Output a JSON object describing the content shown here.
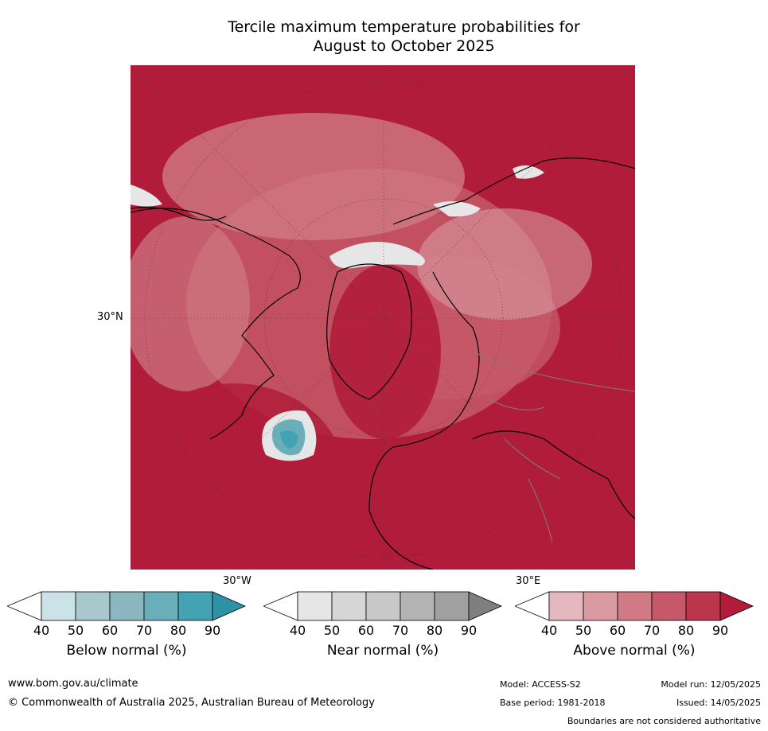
{
  "title_line1": "Tercile maximum temperature probabilities for",
  "title_line2": "August to October 2025",
  "map": {
    "lat_label": "30°N",
    "lon_label_west": "30°W",
    "lon_label_east": "30°E"
  },
  "colorbars": [
    {
      "label": "Below normal (%)",
      "ticks": [
        "40",
        "50",
        "60",
        "70",
        "80",
        "90"
      ],
      "colors": [
        "#ffffff",
        "#cbe2e8",
        "#a8c8ce",
        "#8bb8c0",
        "#6aaeba",
        "#44a3b3",
        "#2d92a6"
      ]
    },
    {
      "label": "Near normal (%)",
      "ticks": [
        "40",
        "50",
        "60",
        "70",
        "80",
        "90"
      ],
      "colors": [
        "#ffffff",
        "#e6e6e6",
        "#d6d6d6",
        "#c8c8c8",
        "#b4b4b4",
        "#a0a0a0",
        "#7f7f7f"
      ]
    },
    {
      "label": "Above normal (%)",
      "ticks": [
        "40",
        "50",
        "60",
        "70",
        "80",
        "90"
      ],
      "colors": [
        "#ffffff",
        "#e4b8be",
        "#d99aa2",
        "#cf7a85",
        "#c65969",
        "#bb364b",
        "#b01c3a"
      ]
    }
  ],
  "footer": {
    "website": "www.bom.gov.au/climate",
    "copyright": "© Commonwealth of Australia 2025, Australian Bureau of Meteorology",
    "model": "Model: ACCESS-S2",
    "base_period": "Base period: 1981-2018",
    "model_run": "Model run: 12/05/2025",
    "issued": "Issued: 14/05/2025",
    "boundaries": "Boundaries are not considered authoritative"
  }
}
